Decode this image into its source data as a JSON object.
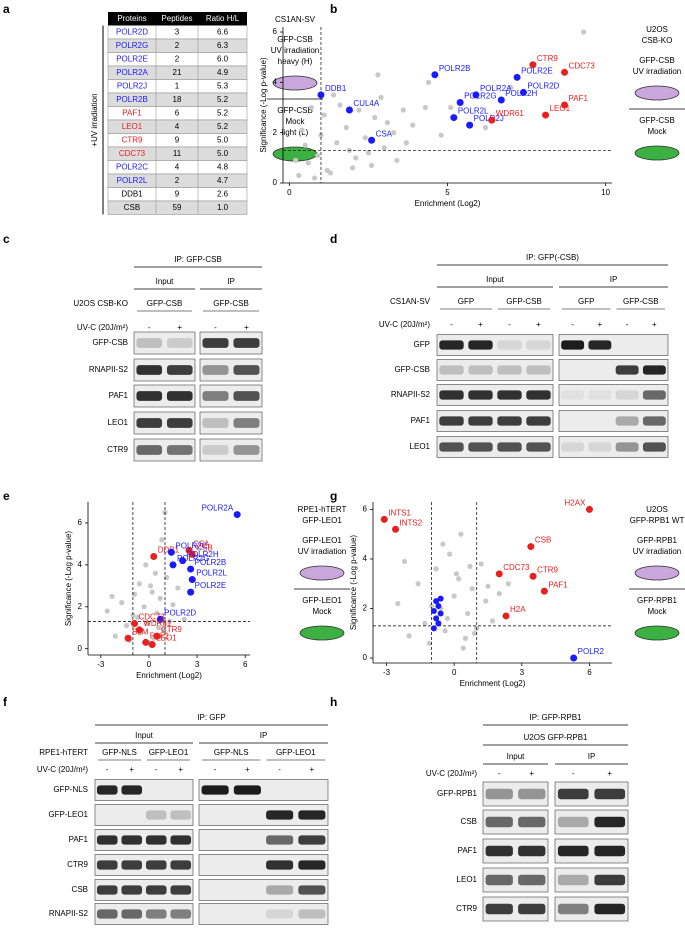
{
  "panels": {
    "a": {
      "label": "a",
      "side_label": "+UV irradiation",
      "table": {
        "header": [
          "Proteins",
          "Peptides",
          "Ratio H/L"
        ],
        "rows": [
          [
            "POLR2D",
            3,
            "6.6"
          ],
          [
            "POLR2G",
            2,
            "6.3"
          ],
          [
            "POLR2E",
            2,
            "6.0"
          ],
          [
            "POLR2A",
            21,
            "4.9"
          ],
          [
            "POLR2J",
            1,
            "5.3"
          ],
          [
            "POLR2B",
            18,
            "5.2"
          ],
          [
            "PAF1",
            6,
            "5.2"
          ],
          [
            "LEO1",
            4,
            "5.2"
          ],
          [
            "CTR9",
            9,
            "5.0"
          ],
          [
            "CDC73",
            11,
            "5.0"
          ],
          [
            "POLR2C",
            4,
            "4.8"
          ],
          [
            "POLR2L",
            2,
            "4.7"
          ],
          [
            "DDB1",
            9,
            "2.6"
          ],
          [
            "CSB",
            59,
            "1.0"
          ]
        ],
        "row_colors": [
          "#1a1aff",
          "#1a1aff",
          "#1a1aff",
          "#1a1aff",
          "#1a1aff",
          "#1a1aff",
          "#e8201f",
          "#e8201f",
          "#e8201f",
          "#e8201f",
          "#1a1aff",
          "#1a1aff",
          "#000000",
          "#000000"
        ]
      },
      "legend": {
        "cell_line": [
          "CS1AN-SV"
        ],
        "treated": [
          "GFP-CSB",
          "UV irradiation",
          "heavy (H)"
        ],
        "mock": [
          "GFP-CSB",
          "Mock",
          "light (L)"
        ]
      }
    },
    "b": {
      "label": "b",
      "x_label": "Enrichment (Log2)",
      "y_label": "Significance (-Log p-value)",
      "xlim": [
        -0.2,
        10.2
      ],
      "ylim": [
        0,
        6.2
      ],
      "xticks": [
        0,
        5,
        10
      ],
      "yticks": [
        0,
        2,
        4,
        6
      ],
      "vlines": [
        1
      ],
      "hline": 1.3,
      "background": {
        "x": [
          0.3,
          0.6,
          0.9,
          1.2,
          1.5,
          1.8,
          2.1,
          2.4,
          2.7,
          3.0,
          3.3,
          3.6,
          0.4,
          0.8,
          1.1,
          1.6,
          2.0,
          2.5,
          2.9,
          3.4,
          3.9,
          4.3,
          4.8,
          0.5,
          1.3,
          1.9,
          2.6,
          3.1,
          0.2,
          1.0,
          2.2,
          3.7,
          4.4,
          5.1,
          6.2,
          7.0,
          2.8,
          1.4,
          0.7,
          9.3
        ],
        "y": [
          0.3,
          0.8,
          1.1,
          0.5,
          1.6,
          2.2,
          1.0,
          1.8,
          2.6,
          1.4,
          2.0,
          2.9,
          2.1,
          0.2,
          2.7,
          3.1,
          0.6,
          1.2,
          3.4,
          0.9,
          2.3,
          3.0,
          1.9,
          1.5,
          0.4,
          1.3,
          0.7,
          2.4,
          0.9,
          1.9,
          2.9,
          1.6,
          4.0,
          3.0,
          2.2,
          3.8,
          4.3,
          3.5,
          3.0,
          6.0
        ]
      },
      "points": [
        {
          "name": "DDB1",
          "color": "#1a1aff",
          "x": 1.0,
          "y": 3.5
        },
        {
          "name": "CUL4A",
          "color": "#1a1aff",
          "x": 1.9,
          "y": 2.9
        },
        {
          "name": "CSA",
          "color": "#1a1aff",
          "x": 2.6,
          "y": 1.7
        },
        {
          "name": "POLR2B",
          "color": "#1a1aff",
          "x": 4.6,
          "y": 4.3
        },
        {
          "name": "POLR2A",
          "color": "#1a1aff",
          "x": 5.9,
          "y": 3.5
        },
        {
          "name": "POLR2E",
          "color": "#1a1aff",
          "x": 7.2,
          "y": 4.2
        },
        {
          "name": "POLR2D",
          "color": "#1a1aff",
          "x": 7.4,
          "y": 3.6
        },
        {
          "name": "POLR2G",
          "color": "#1a1aff",
          "x": 5.4,
          "y": 3.2
        },
        {
          "name": "POLR2H",
          "color": "#1a1aff",
          "x": 6.7,
          "y": 3.3
        },
        {
          "name": "POLR2L",
          "color": "#1a1aff",
          "x": 5.2,
          "y": 2.6
        },
        {
          "name": "POLR2J",
          "color": "#1a1aff",
          "x": 5.7,
          "y": 2.3
        },
        {
          "name": "CTR9",
          "color": "#e8201f",
          "x": 7.7,
          "y": 4.7
        },
        {
          "name": "CDC73",
          "color": "#e8201f",
          "x": 8.7,
          "y": 4.4
        },
        {
          "name": "PAF1",
          "color": "#e8201f",
          "x": 8.7,
          "y": 3.1
        },
        {
          "name": "WDR61",
          "color": "#e8201f",
          "x": 6.4,
          "y": 2.5
        },
        {
          "name": "LEO1",
          "color": "#e8201f",
          "x": 8.1,
          "y": 2.7
        }
      ],
      "legend": {
        "cell_line": [
          "U2OS",
          "CSB-KO"
        ],
        "treated": [
          "GFP-CSB",
          "UV irradiation"
        ],
        "mock": [
          "GFP-CSB",
          "Mock"
        ]
      }
    },
    "c": {
      "label": "c",
      "title": "IP: GFP-CSB",
      "groups": [
        "Input",
        "IP"
      ],
      "cell_line": "U2OS CSB-KO",
      "constructs": [
        "GFP-CSB",
        "GFP-CSB"
      ],
      "treatment": "UV-C (20J/m²)",
      "lanes": [
        "-",
        "+",
        "-",
        "+"
      ],
      "rows": [
        "GFP-CSB",
        "RNAPII-S2",
        "PAF1",
        "LEO1",
        "CTR9"
      ]
    },
    "d": {
      "label": "d",
      "title": "IP: GFP(-CSB)",
      "groups": [
        "Input",
        "IP"
      ],
      "cell_line": "CS1AN-SV",
      "constructs": [
        "GFP",
        "GFP-CSB",
        "GFP",
        "GFP-CSB"
      ],
      "treatment": "UV-C (20J/m²)",
      "lanes": [
        "-",
        "+",
        "-",
        "+",
        "-",
        "+",
        "-",
        "+"
      ],
      "rows": [
        "GFP",
        "GFP-CSB",
        "RNAPII-S2",
        "PAF1",
        "LEO1"
      ]
    },
    "e": {
      "label": "e",
      "x_label": "Enrichment (Log2)",
      "y_label": "Significance (-Log p-value)",
      "xlim": [
        -3.8,
        6.3
      ],
      "ylim": [
        -0.3,
        7
      ],
      "xticks": [
        -3,
        0,
        3,
        6
      ],
      "yticks": [
        0,
        2,
        4,
        6
      ],
      "vlines": [
        -1,
        1
      ],
      "hline": 1.3,
      "background": {
        "x": [
          -2.6,
          -2.1,
          -1.7,
          -1.4,
          -1.2,
          -0.9,
          -0.7,
          -0.5,
          -0.3,
          -0.1,
          0.1,
          0.3,
          0.5,
          0.7,
          0.9,
          1.1,
          1.3,
          1.5,
          -0.6,
          0.2,
          0.6,
          -1.0,
          0.0,
          0.4,
          1.8,
          2.2,
          -2.3,
          1.0,
          -0.2,
          0.8
        ],
        "y": [
          1.8,
          0.6,
          2.2,
          1.1,
          0.4,
          2.6,
          1.5,
          0.8,
          2.0,
          1.2,
          3.0,
          0.5,
          1.7,
          2.4,
          0.9,
          3.4,
          1.3,
          2.1,
          3.1,
          2.7,
          1.0,
          1.6,
          0.3,
          3.6,
          2.9,
          1.4,
          2.5,
          6.5,
          4.0,
          5.2
        ]
      },
      "points": [
        {
          "name": "POLR2A",
          "color": "#1a1aff",
          "x": 5.5,
          "y": 6.4
        },
        {
          "name": "CSA",
          "color": "#e8201f",
          "x": 2.5,
          "y": 4.7
        },
        {
          "name": "CSB",
          "color": "#e8201f",
          "x": 2.7,
          "y": 4.5
        },
        {
          "name": "DDB1",
          "color": "#e8201f",
          "x": 0.3,
          "y": 4.4
        },
        {
          "name": "POLR2C",
          "color": "#1a1aff",
          "x": 1.4,
          "y": 4.6
        },
        {
          "name": "POLR2H",
          "color": "#1a1aff",
          "x": 2.1,
          "y": 4.2
        },
        {
          "name": "POLR2G",
          "color": "#1a1aff",
          "x": 1.5,
          "y": 4.0
        },
        {
          "name": "POLR2B",
          "color": "#1a1aff",
          "x": 2.6,
          "y": 3.8
        },
        {
          "name": "POLR2L",
          "color": "#1a1aff",
          "x": 2.7,
          "y": 3.3
        },
        {
          "name": "POLR2E",
          "color": "#1a1aff",
          "x": 2.6,
          "y": 2.7
        },
        {
          "name": "POLR2D",
          "color": "#1a1aff",
          "x": 0.7,
          "y": 1.4
        },
        {
          "name": "CDC73",
          "color": "#e8201f",
          "x": -0.9,
          "y": 1.2
        },
        {
          "name": "WDR61",
          "color": "#e8201f",
          "x": -0.6,
          "y": 0.9
        },
        {
          "name": "CTR9",
          "color": "#e8201f",
          "x": 0.5,
          "y": 0.6
        },
        {
          "name": "BLM",
          "color": "#e8201f",
          "x": -1.3,
          "y": 0.5
        },
        {
          "name": "PAF1",
          "color": "#e8201f",
          "x": -0.2,
          "y": 0.3
        },
        {
          "name": "LEO1",
          "color": "#e8201f",
          "x": 0.2,
          "y": 0.2
        }
      ],
      "legend": {
        "cell_line": [
          "RPE1-hTERT",
          "GFP-LEO1"
        ],
        "treated": [
          "GFP-LEO1",
          "UV irradiation"
        ],
        "mock": [
          "GFP-LEO1",
          "Mock"
        ]
      }
    },
    "f": {
      "label": "f",
      "title": "IP: GFP",
      "groups": [
        "Input",
        "IP"
      ],
      "cell_line": "RPE1-hTERT",
      "constructs": [
        "GFP-NLS",
        "GFP-LEO1",
        "GFP-NLS",
        "GFP-LEO1"
      ],
      "treatment": "UV-C (20J/m²)",
      "lanes": [
        "-",
        "+",
        "-",
        "+",
        "-",
        "+",
        "-",
        "+"
      ],
      "rows": [
        "GFP-NLS",
        "GFP-LEO1",
        "PAF1",
        "CTR9",
        "CSB",
        "RNAPII-S2"
      ]
    },
    "g": {
      "label": "g",
      "x_label": "Enrichment (Log2)",
      "y_label": "Significance (-Log p-value)",
      "xlim": [
        -3.6,
        7.0
      ],
      "ylim": [
        -0.2,
        6.3
      ],
      "xticks": [
        -3,
        0,
        3,
        6
      ],
      "yticks": [
        0,
        2,
        4,
        6
      ],
      "vlines": [
        -1,
        1
      ],
      "hline": 1.3,
      "background": {
        "x": [
          -2.5,
          -2.0,
          -1.6,
          -1.3,
          -1.1,
          -0.8,
          -0.6,
          -0.4,
          -0.2,
          0.0,
          0.2,
          0.4,
          0.6,
          0.8,
          1.0,
          1.2,
          1.4,
          1.7,
          2.0,
          -0.5,
          0.1,
          0.5,
          -1.0,
          0.3,
          0.9,
          2.4,
          -2.2,
          1.5,
          -0.3,
          0.7
        ],
        "y": [
          2.2,
          0.9,
          3.0,
          1.4,
          0.6,
          3.6,
          2.0,
          1.1,
          4.2,
          2.5,
          3.2,
          0.4,
          1.8,
          2.8,
          1.2,
          3.8,
          2.3,
          1.5,
          2.6,
          4.6,
          3.4,
          0.8,
          2.1,
          5.0,
          1.0,
          3.0,
          3.9,
          2.9,
          1.6,
          3.7
        ]
      },
      "unlabeled": {
        "color": "#1a1aff",
        "x": [
          -0.9,
          -0.7,
          -0.8,
          -0.6,
          -0.9,
          -0.7,
          -0.8,
          -0.6
        ],
        "y": [
          1.2,
          1.4,
          1.6,
          1.8,
          1.9,
          2.1,
          2.3,
          2.4
        ]
      },
      "points": [
        {
          "name": "INTS1",
          "color": "#e8201f",
          "x": -3.1,
          "y": 5.6
        },
        {
          "name": "INTS2",
          "color": "#e8201f",
          "x": -2.6,
          "y": 5.2
        },
        {
          "name": "H2AX",
          "color": "#e8201f",
          "x": 6.0,
          "y": 6.0
        },
        {
          "name": "CSB",
          "color": "#e8201f",
          "x": 3.4,
          "y": 4.5
        },
        {
          "name": "CDC73",
          "color": "#e8201f",
          "x": 2.0,
          "y": 3.4
        },
        {
          "name": "CTR9",
          "color": "#e8201f",
          "x": 3.5,
          "y": 3.3
        },
        {
          "name": "PAF1",
          "color": "#e8201f",
          "x": 4.0,
          "y": 2.7
        },
        {
          "name": "H2A",
          "color": "#e8201f",
          "x": 2.3,
          "y": 1.7
        },
        {
          "name": "POLR2",
          "color": "#1a1aff",
          "x": 5.3,
          "y": 0.0
        }
      ],
      "legend": {
        "cell_line": [
          "U2OS",
          "GFP-RPB1 WT"
        ],
        "treated": [
          "GFP-RPB1",
          "UV irradiation"
        ],
        "mock": [
          "GFP-RPB1",
          "Mock"
        ]
      }
    },
    "h": {
      "label": "h",
      "title": "IP: GFP-RPB1",
      "header": "U2OS GFP-RPB1",
      "groups": [
        "Input",
        "IP"
      ],
      "treatment": "UV-C (20J/m²)",
      "lanes": [
        "-",
        "+",
        "-",
        "+"
      ],
      "rows": [
        "GFP-RPB1",
        "CSB",
        "PAF1",
        "LEO1",
        "CTR9"
      ]
    }
  }
}
